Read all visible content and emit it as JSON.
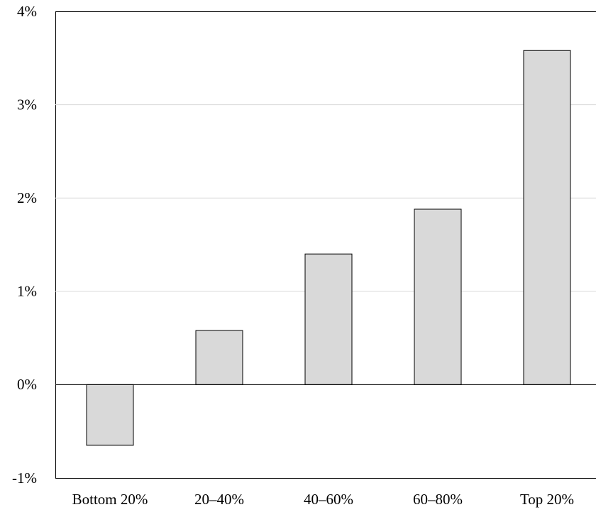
{
  "chart_data": {
    "type": "bar",
    "categories": [
      "Bottom 20%",
      "20–40%",
      "40–60%",
      "60–80%",
      "Top 20%"
    ],
    "values": [
      -0.65,
      0.58,
      1.4,
      1.88,
      3.58
    ],
    "color": "#d9d9d9",
    "ylim": [
      -1,
      4
    ],
    "yticks": [
      {
        "value": -1,
        "label": "-1%"
      },
      {
        "value": 0,
        "label": "0%"
      },
      {
        "value": 1,
        "label": "1%"
      },
      {
        "value": 2,
        "label": "2%"
      },
      {
        "value": 3,
        "label": "3%"
      },
      {
        "value": 4,
        "label": "4%"
      }
    ],
    "grid": true
  }
}
